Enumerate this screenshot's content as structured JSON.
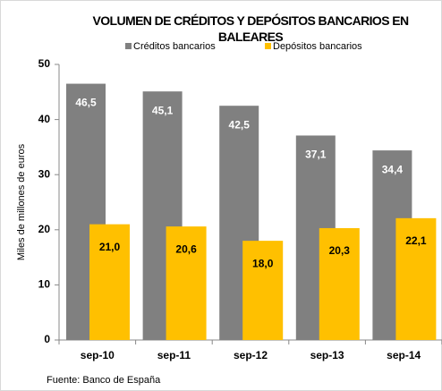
{
  "chart_data": {
    "type": "bar",
    "title": "VOLUMEN DE CRÉDITOS Y DEPÓSITOS BANCARIOS EN BALEARES",
    "categories": [
      "sep-10",
      "sep-11",
      "sep-12",
      "sep-13",
      "sep-14"
    ],
    "series": [
      {
        "name": "Créditos bancarios",
        "color": "#808080",
        "values": [
          46.5,
          45.1,
          42.5,
          37.1,
          34.4
        ],
        "value_labels": [
          "46,5",
          "45,1",
          "42,5",
          "37,1",
          "34,4"
        ]
      },
      {
        "name": "Depósitos bancarios",
        "color": "#ffc000",
        "values": [
          21.0,
          20.6,
          18.0,
          20.3,
          22.1
        ],
        "value_labels": [
          "21,0",
          "20,6",
          "18,0",
          "20,3",
          "22,1"
        ]
      }
    ],
    "y_label": "Miles de millones de euros",
    "ylim": [
      0,
      50
    ],
    "yticks": [
      0,
      10,
      20,
      30,
      40,
      50
    ],
    "source": "Fuente: Banco de España"
  }
}
